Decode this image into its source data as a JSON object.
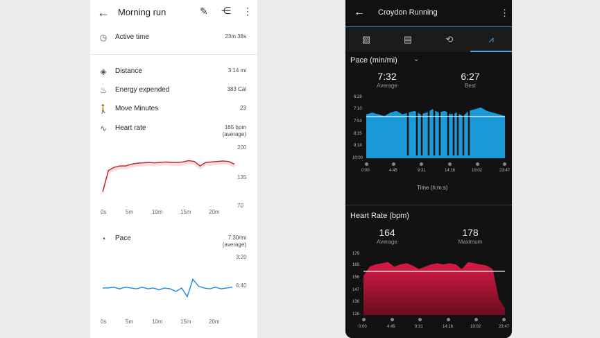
{
  "left": {
    "title": "Morning run",
    "active_time": {
      "label": "Active time",
      "value": "23m 38s"
    },
    "distance": {
      "label": "Distance",
      "value": "3.14 mi"
    },
    "energy": {
      "label": "Energy expended",
      "value": "383 Cal"
    },
    "move_minutes": {
      "label": "Move Minutes",
      "value": "23"
    },
    "heart_rate": {
      "label": "Heart rate",
      "value": "165 bpm",
      "sub": "(average)"
    },
    "hr_chart": {
      "y_ticks": [
        "200",
        "135",
        "70"
      ],
      "x_ticks": [
        "0s",
        "5m",
        "10m",
        "15m",
        "20m"
      ]
    },
    "pace": {
      "label": "Pace",
      "value": "7:30/mi",
      "sub": "(average)"
    },
    "pace_chart": {
      "y_ticks": [
        "3:20",
        "6:40"
      ],
      "x_ticks": [
        "0s",
        "5m",
        "10m",
        "15m",
        "20m"
      ]
    }
  },
  "right": {
    "title": "Croydon Running",
    "tabs": [
      "overview",
      "details",
      "laps",
      "charts"
    ],
    "pace": {
      "title": "Pace (min/mi)",
      "avg_value": "7:32",
      "avg_label": "Average",
      "best_value": "6:27",
      "best_label": "Best",
      "y_ticks": [
        "6:28",
        "7:10",
        "7:53",
        "8:35",
        "9:18",
        "10:00"
      ],
      "x_ticks": [
        "0:00",
        "4:45",
        "9:31",
        "14:16",
        "19:02",
        "23:47"
      ],
      "x_label": "Time (h:m:s)"
    },
    "hr": {
      "title": "Heart Rate (bpm)",
      "avg_value": "164",
      "avg_label": "Average",
      "max_value": "178",
      "max_label": "Maximum",
      "y_ticks": [
        "179",
        "169",
        "158",
        "147",
        "136",
        "126"
      ],
      "x_ticks": [
        "0:00",
        "4:45",
        "9:31",
        "14:16",
        "19:02",
        "23:47"
      ]
    }
  },
  "colors": {
    "hr_red": "#c62828",
    "pace_blue": "#1e88e5",
    "garmin_blue": "#1a9ad8",
    "garmin_red": "#d81b45"
  },
  "chart_data": [
    {
      "type": "line",
      "title": "",
      "series": [
        {
          "name": "Heart rate",
          "x_min": [
            0,
            1,
            2,
            3,
            4,
            5,
            6,
            7,
            8,
            9,
            10,
            11,
            12,
            13,
            14,
            15,
            16,
            17,
            18,
            19,
            20,
            21,
            22,
            23
          ],
          "values": [
            100,
            148,
            155,
            158,
            158,
            162,
            164,
            165,
            166,
            165,
            166,
            167,
            166,
            166,
            167,
            170,
            168,
            158,
            166,
            167,
            168,
            169,
            168,
            162
          ]
        }
      ],
      "ylim": [
        70,
        200
      ]
    },
    {
      "type": "line",
      "title": "",
      "series": [
        {
          "name": "Pace",
          "x_min": [
            0,
            1,
            2,
            3,
            4,
            5,
            6,
            7,
            8,
            9,
            10,
            11,
            12,
            13,
            14,
            15,
            16,
            17,
            18,
            19,
            20,
            21,
            22,
            23
          ],
          "values": [
            6.9,
            6.9,
            6.8,
            7.0,
            6.8,
            6.9,
            7.0,
            6.8,
            7.0,
            6.9,
            7.1,
            6.9,
            7.0,
            7.3,
            6.9,
            7.9,
            5.9,
            6.7,
            6.9,
            7.0,
            6.8,
            7.0,
            6.9,
            6.8
          ]
        }
      ],
      "ylim": [
        3.33,
        10
      ]
    },
    {
      "type": "area",
      "title": "Pace (min/mi)",
      "xlabel": "Time (h:m:s)",
      "series": [
        {
          "name": "Pace",
          "x_min": [
            0,
            1,
            2,
            3,
            4,
            5,
            6,
            7,
            8,
            9,
            10,
            11,
            12,
            13,
            14,
            15,
            16,
            17,
            18,
            19,
            20,
            21,
            22,
            23
          ],
          "values": [
            7.4,
            7.3,
            7.4,
            7.5,
            7.3,
            7.2,
            7.4,
            7.3,
            7.2,
            7.4,
            7.3,
            7.1,
            7.3,
            7.2,
            7.4,
            7.3,
            7.5,
            7.2,
            7.1,
            7.0,
            7.2,
            7.3,
            7.4,
            7.5
          ]
        }
      ],
      "reference_line": 7.53,
      "ylim": [
        6.47,
        10
      ]
    },
    {
      "type": "area",
      "title": "Heart Rate (bpm)",
      "series": [
        {
          "name": "Heart Rate",
          "x_min": [
            0,
            1,
            2,
            3,
            4,
            5,
            6,
            7,
            8,
            9,
            10,
            11,
            12,
            13,
            14,
            15,
            16,
            17,
            18,
            19,
            20,
            21,
            22,
            23
          ],
          "values": [
            160,
            168,
            170,
            171,
            172,
            168,
            170,
            171,
            169,
            166,
            168,
            170,
            171,
            170,
            171,
            170,
            166,
            172,
            171,
            170,
            169,
            166,
            140,
            132
          ]
        }
      ],
      "reference_line": 164,
      "ylim": [
        126,
        179
      ]
    }
  ]
}
